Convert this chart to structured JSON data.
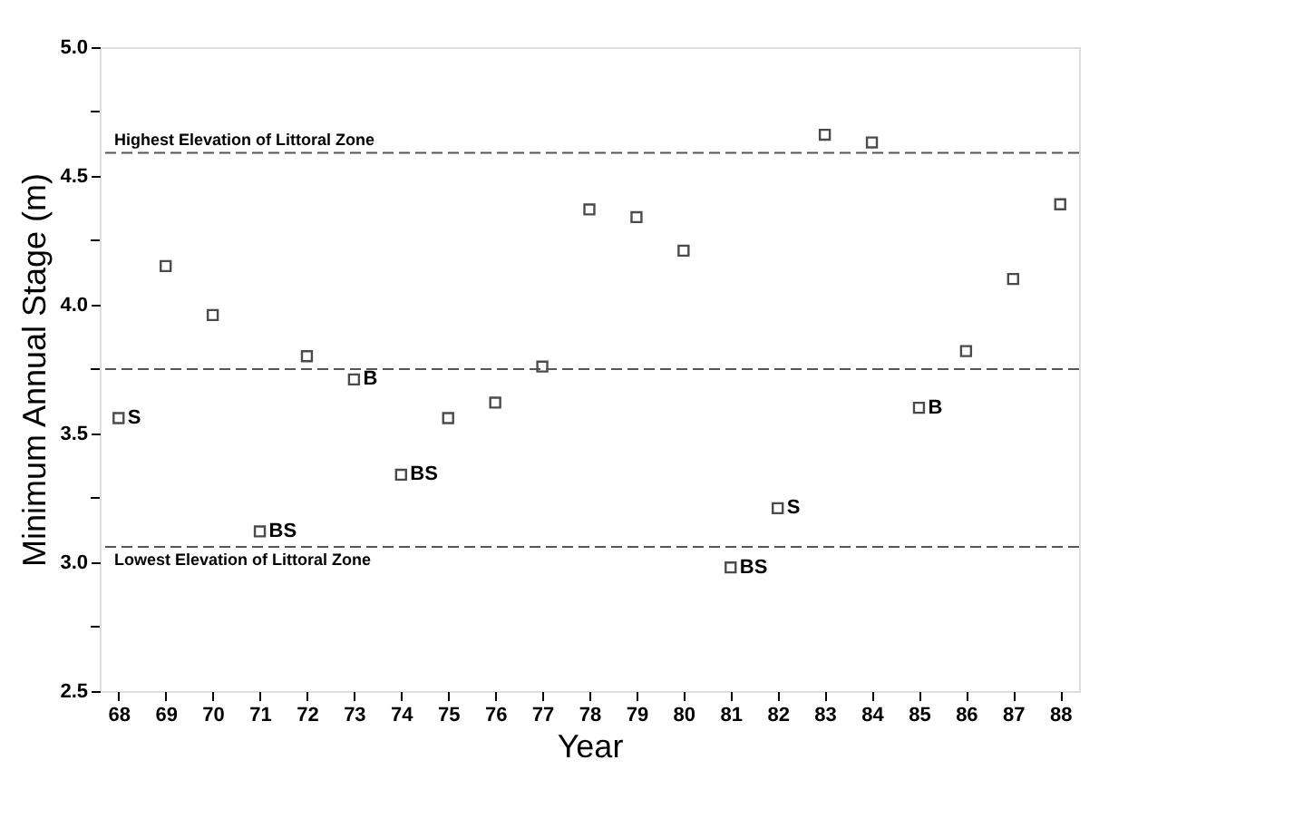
{
  "chart_data": {
    "type": "scatter",
    "xlabel": "Year",
    "ylabel": "Minimum Annual Stage (m)",
    "categories": [
      "68",
      "69",
      "70",
      "71",
      "72",
      "73",
      "74",
      "75",
      "76",
      "77",
      "78",
      "79",
      "80",
      "81",
      "82",
      "83",
      "84",
      "85",
      "86",
      "87",
      "88"
    ],
    "series": [
      {
        "color": "#000000",
        "values": [
          3.56,
          4.15,
          3.96,
          3.12,
          3.8,
          3.71,
          3.34,
          3.56,
          3.62,
          3.76,
          4.37,
          4.34,
          4.21,
          2.98,
          3.21,
          4.66,
          4.63,
          3.6,
          3.82,
          4.1,
          4.39
        ]
      }
    ],
    "marker": "square",
    "ylim": [
      2.5,
      5.0
    ],
    "yticks": [
      2.5,
      {
        "value": 2.75,
        "label": null
      },
      {
        "value": 3,
        "label": "3.0"
      },
      {
        "value": 3.25,
        "label": null
      },
      3.5,
      {
        "value": 3.75,
        "label": null
      },
      {
        "value": 4,
        "label": "4.0"
      },
      {
        "value": 4.25,
        "label": null
      },
      4.5,
      {
        "value": 4.75,
        "label": null
      },
      {
        "value": 5,
        "label": "5.0"
      }
    ],
    "ref_lines": [
      {
        "axis": "y",
        "value": 4.59,
        "label": "Highest Elevation of Littoral Zone",
        "color": "#555555",
        "line_style": "dashed"
      },
      {
        "axis": "y",
        "value": 3.75,
        "color": "#555555",
        "line_style": "dashed"
      },
      {
        "axis": "y",
        "value": 3.06,
        "label": "Lowest Elevation of Littoral Zone",
        "color": "#555555",
        "line_style": "dashed"
      }
    ],
    "annotations": [
      {
        "text": "S",
        "x": "68",
        "y": 3.56
      },
      {
        "text": "BS",
        "x": "71",
        "y": 3.12
      },
      {
        "text": "B",
        "x": "73",
        "y": 3.71
      },
      {
        "text": "BS",
        "x": "74",
        "y": 3.34
      },
      {
        "text": "BS",
        "x": "81",
        "y": 2.98
      },
      {
        "text": "S",
        "x": "82",
        "y": 3.21
      },
      {
        "text": "B",
        "x": "85",
        "y": 3.6
      }
    ],
    "grid": false
  }
}
